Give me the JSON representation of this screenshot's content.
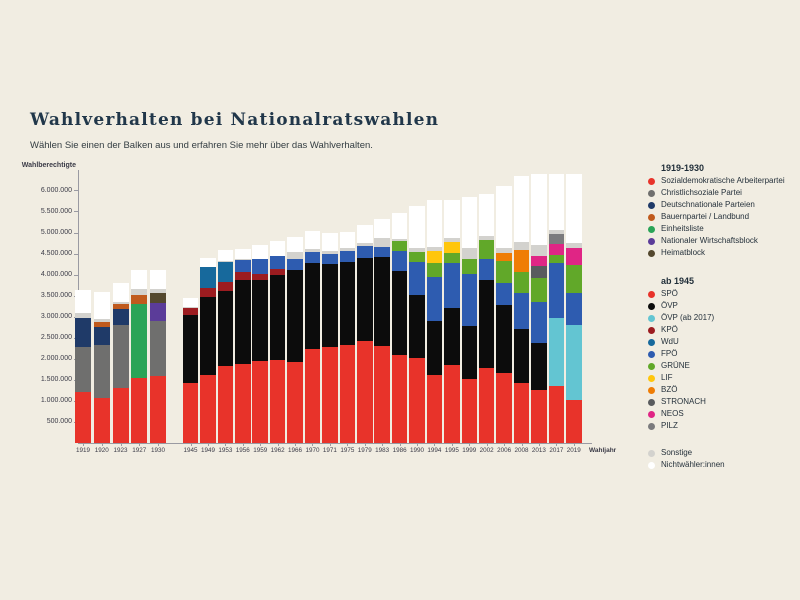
{
  "page": {
    "title": "Wahlverhalten bei Nationalratswahlen",
    "subtitle": "Wählen Sie einen der Balken aus und erfahren Sie mehr über das Wahlverhalten."
  },
  "theme": {
    "background": "#f1ede2",
    "title_color": "#21374a",
    "axis_color": "#9a9aa2",
    "text_color": "#3b3b47"
  },
  "chart_data": {
    "type": "bar",
    "stacked": true,
    "ylabel": "Wahlberechtigte",
    "xlabel": "Wahljahr",
    "ylim": [
      0,
      6500000
    ],
    "ytick_values": [
      500000,
      1000000,
      1500000,
      2000000,
      2500000,
      3000000,
      3500000,
      4000000,
      4500000,
      5000000,
      5500000,
      6000000
    ],
    "ytick_labels": [
      "500.000",
      "1.000.000",
      "1.500.000",
      "2.000.000",
      "2.500.000",
      "3.000.000",
      "3.500.000",
      "4.000.000",
      "4.500.000",
      "5.000.000",
      "5.500.000",
      "6.000.000"
    ],
    "grid": false,
    "legend_position": "right",
    "parties": {
      "sdap": {
        "label": "Sozialdemokratische Arbeiterpartei",
        "color": "#e8332a"
      },
      "cs": {
        "label": "Christlichsoziale Partei",
        "color": "#6f6f6e"
      },
      "dn": {
        "label": "Deutschnationale Parteien",
        "color": "#1f3a68"
      },
      "bp": {
        "label": "Bauernpartei / Landbund",
        "color": "#c05a1d"
      },
      "el": {
        "label": "Einheitsliste",
        "color": "#2aa457"
      },
      "nwb": {
        "label": "Nationaler Wirtschaftsblock",
        "color": "#5b3c99"
      },
      "hb": {
        "label": "Heimatblock",
        "color": "#54482e"
      },
      "spoe": {
        "label": "SPÖ",
        "color": "#e8332a"
      },
      "oevp": {
        "label": "ÖVP",
        "color": "#0c0c0c"
      },
      "oevp2017": {
        "label": "ÖVP (ab 2017)",
        "color": "#63c5d2"
      },
      "kpoe": {
        "label": "KPÖ",
        "color": "#9c1c20"
      },
      "wdu": {
        "label": "WdU",
        "color": "#17699c"
      },
      "fpoe": {
        "label": "FPÖ",
        "color": "#2e5cb0"
      },
      "gruene": {
        "label": "GRÜNE",
        "color": "#61a829"
      },
      "lif": {
        "label": "LIF",
        "color": "#ffc60c"
      },
      "bzoe": {
        "label": "BZÖ",
        "color": "#ef7d05"
      },
      "stronach": {
        "label": "STRONACH",
        "color": "#595b5e"
      },
      "neos": {
        "label": "NEOS",
        "color": "#e02585"
      },
      "pilz": {
        "label": "PILZ",
        "color": "#7b7b7e"
      },
      "sonstige": {
        "label": "Sonstige",
        "color": "#d3d2ce"
      },
      "nw": {
        "label": "Nichtwähler:innen",
        "color": "#ffffff"
      }
    },
    "groups": [
      {
        "name": "1919-1930",
        "bars": [
          {
            "year": "1919",
            "segments": [
              [
                "sdap",
                1211000
              ],
              [
                "cs",
                1068000
              ],
              [
                "dn",
                700000
              ],
              [
                "sonstige",
                100000
              ],
              [
                "nw",
                550000
              ]
            ]
          },
          {
            "year": "1920",
            "segments": [
              [
                "sdap",
                1073000
              ],
              [
                "cs",
                1246000
              ],
              [
                "dn",
                430000
              ],
              [
                "bp",
                125000
              ],
              [
                "sonstige",
                70000
              ],
              [
                "nw",
                645000
              ]
            ]
          },
          {
            "year": "1923",
            "segments": [
              [
                "sdap",
                1312000
              ],
              [
                "cs",
                1491000
              ],
              [
                "dn",
                370000
              ],
              [
                "bp",
                120000
              ],
              [
                "sonstige",
                60000
              ],
              [
                "nw",
                450000
              ]
            ]
          },
          {
            "year": "1927",
            "segments": [
              [
                "sdap",
                1540000
              ],
              [
                "el",
                1757000
              ],
              [
                "bp",
                230000
              ],
              [
                "sonstige",
                130000
              ],
              [
                "nw",
                460000
              ]
            ]
          },
          {
            "year": "1930",
            "segments": [
              [
                "sdap",
                1594000
              ],
              [
                "cs",
                1314000
              ],
              [
                "nwb",
                430000
              ],
              [
                "hb",
                230000
              ],
              [
                "sonstige",
                80000
              ],
              [
                "nw",
                470000
              ]
            ]
          }
        ]
      },
      {
        "name": "ab 1945",
        "bars": [
          {
            "year": "1945",
            "segments": [
              [
                "spoe",
                1435000
              ],
              [
                "oevp",
                1602000
              ],
              [
                "kpoe",
                174000
              ],
              [
                "sonstige",
                10000
              ],
              [
                "nw",
                229000
              ]
            ]
          },
          {
            "year": "1949",
            "segments": [
              [
                "spoe",
                1624000
              ],
              [
                "oevp",
                1847000
              ],
              [
                "kpoe",
                213000
              ],
              [
                "wdu",
                489000
              ],
              [
                "sonstige",
                12000
              ],
              [
                "nw",
                207000
              ]
            ]
          },
          {
            "year": "1953",
            "segments": [
              [
                "spoe",
                1819000
              ],
              [
                "oevp",
                1782000
              ],
              [
                "kpoe",
                228000
              ],
              [
                "wdu",
                473000
              ],
              [
                "sonstige",
                26000
              ],
              [
                "nw",
                259000
              ]
            ]
          },
          {
            "year": "1956",
            "segments": [
              [
                "spoe",
                1873000
              ],
              [
                "oevp",
                2000000
              ],
              [
                "kpoe",
                192000
              ],
              [
                "fpoe",
                284000
              ],
              [
                "sonstige",
                15000
              ],
              [
                "nw",
                250000
              ]
            ]
          },
          {
            "year": "1959",
            "segments": [
              [
                "spoe",
                1954000
              ],
              [
                "oevp",
                1928000
              ],
              [
                "kpoe",
                143000
              ],
              [
                "fpoe",
                336000
              ],
              [
                "sonstige",
                6000
              ],
              [
                "nw",
                330000
              ]
            ]
          },
          {
            "year": "1962",
            "segments": [
              [
                "spoe",
                1961000
              ],
              [
                "oevp",
                2025000
              ],
              [
                "kpoe",
                136000
              ],
              [
                "fpoe",
                314000
              ],
              [
                "sonstige",
                9000
              ],
              [
                "nw",
                360000
              ]
            ]
          },
          {
            "year": "1966",
            "segments": [
              [
                "spoe",
                1929000
              ],
              [
                "oevp",
                2191000
              ],
              [
                "fpoe",
                243000
              ],
              [
                "sonstige",
                186000
              ],
              [
                "nw",
                338000
              ]
            ]
          },
          {
            "year": "1970",
            "segments": [
              [
                "spoe",
                2222000
              ],
              [
                "oevp",
                2051000
              ],
              [
                "fpoe",
                253000
              ],
              [
                "sonstige",
                80000
              ],
              [
                "nw",
                440000
              ]
            ]
          },
          {
            "year": "1971",
            "segments": [
              [
                "spoe",
                2280000
              ],
              [
                "oevp",
                1965000
              ],
              [
                "fpoe",
                248000
              ],
              [
                "sonstige",
                78000
              ],
              [
                "nw",
                413000
              ]
            ]
          },
          {
            "year": "1975",
            "segments": [
              [
                "spoe",
                2326000
              ],
              [
                "oevp",
                1981000
              ],
              [
                "fpoe",
                249000
              ],
              [
                "sonstige",
                72000
              ],
              [
                "nw",
                391000
              ]
            ]
          },
          {
            "year": "1979",
            "segments": [
              [
                "spoe",
                2413000
              ],
              [
                "oevp",
                1982000
              ],
              [
                "fpoe",
                287000
              ],
              [
                "sonstige",
                62000
              ],
              [
                "nw",
                443000
              ]
            ]
          },
          {
            "year": "1983",
            "segments": [
              [
                "spoe",
                2313000
              ],
              [
                "oevp",
                2098000
              ],
              [
                "fpoe",
                242000
              ],
              [
                "sonstige",
                224000
              ],
              [
                "nw",
                440000
              ]
            ]
          },
          {
            "year": "1986",
            "segments": [
              [
                "spoe",
                2092000
              ],
              [
                "oevp",
                2004000
              ],
              [
                "fpoe",
                472000
              ],
              [
                "gruene",
                234000
              ],
              [
                "sonstige",
                41000
              ],
              [
                "nw",
                618000
              ]
            ]
          },
          {
            "year": "1990",
            "segments": [
              [
                "spoe",
                2013000
              ],
              [
                "oevp",
                1509000
              ],
              [
                "fpoe",
                783000
              ],
              [
                "gruene",
                225000
              ],
              [
                "sonstige",
                100000
              ],
              [
                "nw",
                998000
              ]
            ]
          },
          {
            "year": "1994",
            "segments": [
              [
                "spoe",
                1618000
              ],
              [
                "oevp",
                1282000
              ],
              [
                "fpoe",
                1042000
              ],
              [
                "gruene",
                339000
              ],
              [
                "lif",
                277000
              ],
              [
                "sonstige",
                101000
              ],
              [
                "nw",
                1115000
              ]
            ]
          },
          {
            "year": "1995",
            "segments": [
              [
                "spoe",
                1843000
              ],
              [
                "oevp",
                1371000
              ],
              [
                "fpoe",
                1060000
              ],
              [
                "gruene",
                233000
              ],
              [
                "lif",
                267000
              ],
              [
                "sonstige",
                91000
              ],
              [
                "nw",
                903000
              ]
            ]
          },
          {
            "year": "1999",
            "segments": [
              [
                "spoe",
                1532000
              ],
              [
                "oevp",
                1244000
              ],
              [
                "fpoe",
                1244000
              ],
              [
                "gruene",
                342000
              ],
              [
                "sonstige",
                262000
              ],
              [
                "nw",
                1214000
              ]
            ]
          },
          {
            "year": "2002",
            "segments": [
              [
                "spoe",
                1792000
              ],
              [
                "oevp",
                2077000
              ],
              [
                "fpoe",
                491000
              ],
              [
                "gruene",
                465000
              ],
              [
                "sonstige",
                94000
              ],
              [
                "nw",
                993000
              ]
            ]
          },
          {
            "year": "2006",
            "segments": [
              [
                "spoe",
                1664000
              ],
              [
                "oevp",
                1616000
              ],
              [
                "fpoe",
                520000
              ],
              [
                "gruene",
                520000
              ],
              [
                "bzoe",
                194000
              ],
              [
                "sonstige",
                130000
              ],
              [
                "nw",
                1464000
              ]
            ]
          },
          {
            "year": "2008",
            "segments": [
              [
                "spoe",
                1430000
              ],
              [
                "oevp",
                1270000
              ],
              [
                "fpoe",
                857000
              ],
              [
                "gruene",
                510000
              ],
              [
                "bzoe",
                523000
              ],
              [
                "sonstige",
                190000
              ],
              [
                "nw",
                1553000
              ]
            ]
          },
          {
            "year": "2013",
            "segments": [
              [
                "spoe",
                1259000
              ],
              [
                "oevp",
                1126000
              ],
              [
                "fpoe",
                962000
              ],
              [
                "gruene",
                583000
              ],
              [
                "stronach",
                269000
              ],
              [
                "neos",
                233000
              ],
              [
                "sonstige",
                271000
              ],
              [
                "nw",
                1681000
              ]
            ]
          },
          {
            "year": "2017",
            "segments": [
              [
                "spoe",
                1362000
              ],
              [
                "oevp2017",
                1596000
              ],
              [
                "fpoe",
                1316000
              ],
              [
                "gruene",
                193000
              ],
              [
                "neos",
                269000
              ],
              [
                "pilz",
                224000
              ],
              [
                "sonstige",
                96000
              ],
              [
                "nw",
                1345000
              ]
            ]
          },
          {
            "year": "2019",
            "segments": [
              [
                "spoe",
                1012000
              ],
              [
                "oevp2017",
                1789000
              ],
              [
                "fpoe",
                773000
              ],
              [
                "gruene",
                664000
              ],
              [
                "neos",
                387000
              ],
              [
                "sonstige",
                132000
              ],
              [
                "nw",
                1640000
              ]
            ]
          }
        ]
      }
    ]
  },
  "legend": {
    "sections": [
      {
        "header": "1919-1930",
        "keys": [
          "sdap",
          "cs",
          "dn",
          "bp",
          "el",
          "nwb",
          "hb"
        ]
      },
      {
        "header": "ab 1945",
        "keys": [
          "spoe",
          "oevp",
          "oevp2017",
          "kpoe",
          "wdu",
          "fpoe",
          "gruene",
          "lif",
          "bzoe",
          "stronach",
          "neos",
          "pilz"
        ]
      }
    ],
    "extra_keys": [
      "sonstige",
      "nw"
    ]
  }
}
